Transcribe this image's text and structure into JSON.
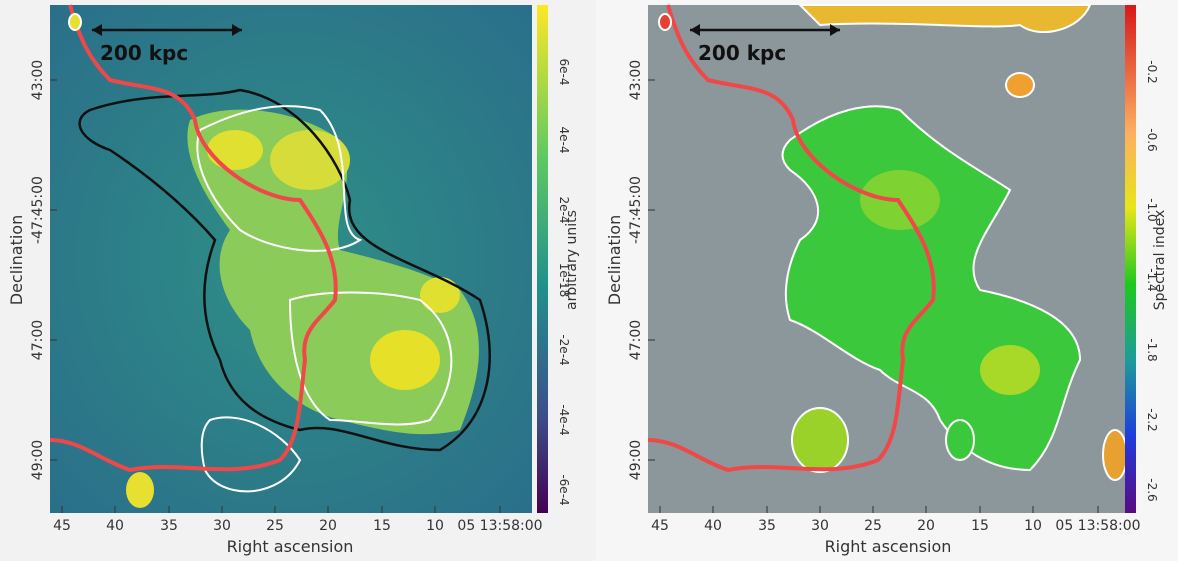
{
  "panels": [
    {
      "scale_label": "200 kpc",
      "x_axis_label": "Right ascension",
      "y_axis_label": "Declination",
      "x_tick_labels": [
        "45",
        "40",
        "35",
        "30",
        "25",
        "20",
        "15",
        "10",
        "05 13:58:00"
      ],
      "y_tick_labels": [
        "43:00",
        "-47:45:00",
        "47:00",
        "49:00"
      ],
      "colorbar_label": "arbitrary units",
      "colorbar_tick_labels": [
        "6e-4",
        "4e-4",
        "2e-4",
        "1e-18",
        "-2e-4",
        "-4e-4",
        "-6e-4"
      ]
    },
    {
      "scale_label": "200 kpc",
      "x_axis_label": "Right ascension",
      "y_axis_label": "Declination",
      "x_tick_labels": [
        "45",
        "40",
        "35",
        "30",
        "25",
        "20",
        "15",
        "10",
        "05 13:58:00"
      ],
      "y_tick_labels": [
        "43:00",
        "-47:45:00",
        "47:00",
        "49:00"
      ],
      "colorbar_label": "Spectral index",
      "colorbar_tick_labels": [
        "-0.2",
        "-0.6",
        "-1.0",
        "-1.4",
        "-1.8",
        "-2.2",
        "-2.6"
      ]
    }
  ]
}
